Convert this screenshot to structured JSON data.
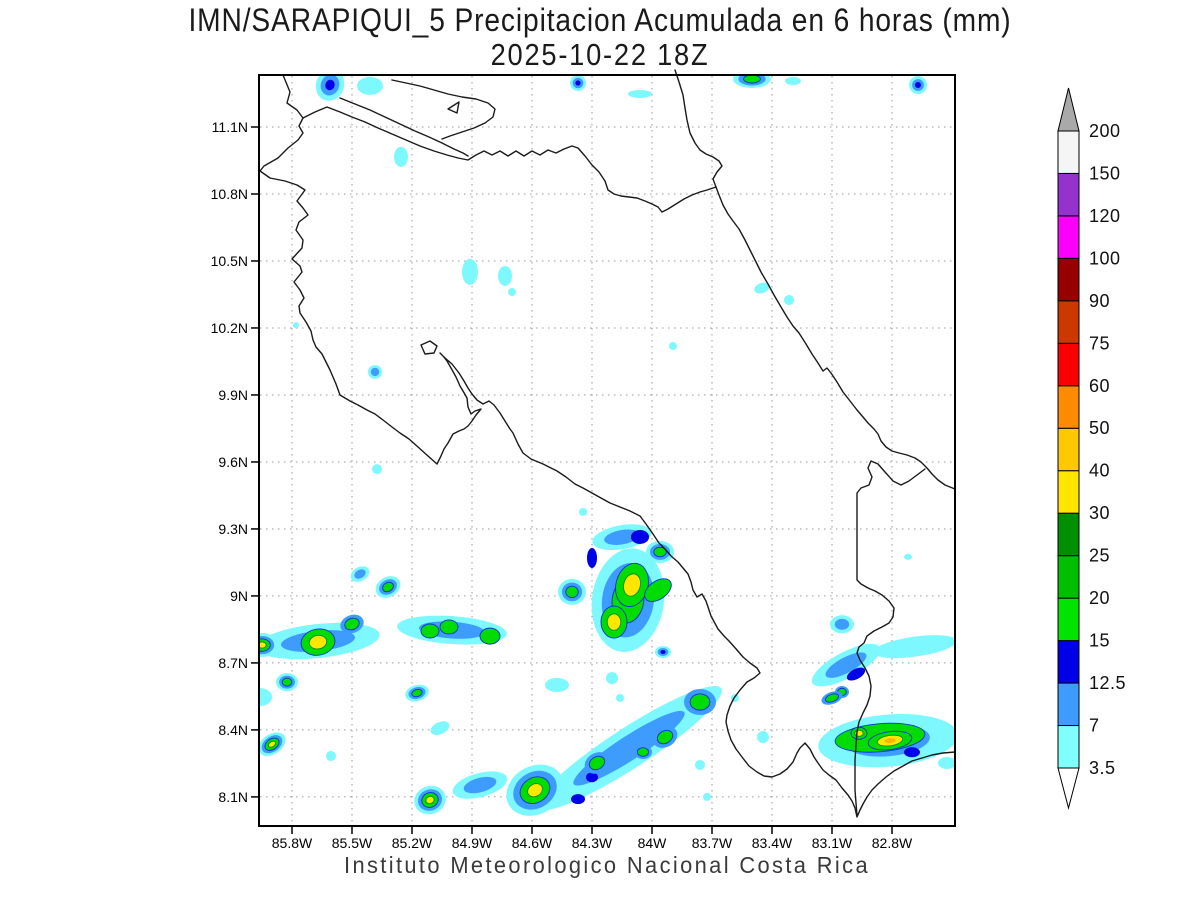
{
  "title": {
    "line1": "IMN/SARAPIQUI_5 Precipitacion Acumulada en 6 horas (mm)",
    "line2": "2025-10-22 18Z"
  },
  "footer": "Instituto Meteorologico Nacional Costa Rica",
  "chart_data": {
    "type": "contour-map",
    "title": "IMN/SARAPIQUI_5 Precipitacion Acumulada en 6 horas (mm)",
    "subtitle": "2025-10-22 18Z",
    "caption": "Instituto Meteorologico Nacional Costa Rica",
    "units": "mm",
    "grid": "dotted",
    "extent": {
      "lon_west_W": 85.97,
      "lon_east_W": 82.49,
      "lat_south_N": 7.97,
      "lat_north_N": 11.33
    },
    "x_ticks": [
      [
        "85.8W",
        85.8
      ],
      [
        "85.5W",
        85.5
      ],
      [
        "85.2W",
        85.2
      ],
      [
        "84.9W",
        84.9
      ],
      [
        "84.6W",
        84.6
      ],
      [
        "84.3W",
        84.3
      ],
      [
        "84W",
        84.0
      ],
      [
        "83.7W",
        83.7
      ],
      [
        "83.4W",
        83.4
      ],
      [
        "83.1W",
        83.1
      ],
      [
        "82.8W",
        82.8
      ]
    ],
    "y_ticks": [
      [
        "11.1N",
        11.1
      ],
      [
        "10.8N",
        10.8
      ],
      [
        "10.5N",
        10.5
      ],
      [
        "10.2N",
        10.2
      ],
      [
        "9.9N",
        9.9
      ],
      [
        "9.6N",
        9.6
      ],
      [
        "9.3N",
        9.3
      ],
      [
        "9N",
        9.0
      ],
      [
        "8.7N",
        8.7
      ],
      [
        "8.4N",
        8.4
      ],
      [
        "8.1N",
        8.1
      ]
    ],
    "colorbar": {
      "labels": [
        "3.5",
        "7",
        "12.5",
        "15",
        "20",
        "25",
        "30",
        "40",
        "50",
        "60",
        "75",
        "90",
        "100",
        "120",
        "150",
        "200"
      ],
      "segment_colors": [
        "#80FFFF",
        "#3E9CFF",
        "#0000E8",
        "#00E400",
        "#00BE00",
        "#008F00",
        "#FFE600",
        "#FFC800",
        "#FF8C00",
        "#FA0000",
        "#CC3900",
        "#960000",
        "#FA00FA",
        "#9333CC",
        "#F5F5F5"
      ],
      "over_color": "#A9A9A9",
      "under_color": "#FFFFFF"
    },
    "palette": {
      "c": "#7DF8FF",
      "b": "#3E9CFF",
      "db": "#0000E8",
      "g": "#00DC00",
      "y": "#FFE600",
      "gold": "#FFB400"
    },
    "cells_format": [
      "lon_W",
      "lat_N",
      "rot_deg",
      "rx_px",
      "ry_px",
      "peak_level"
    ],
    "cells": [
      [
        84.115,
        8.318,
        -33,
        110,
        20,
        "b"
      ],
      [
        84.86,
        8.153,
        -15,
        28,
        12,
        "b"
      ],
      [
        85.67,
        8.798,
        -6,
        62,
        17,
        "b"
      ],
      [
        85.0,
        8.847,
        4,
        55,
        14,
        "b"
      ],
      [
        83.03,
        8.69,
        -28,
        38,
        13,
        "b"
      ],
      [
        82.685,
        8.773,
        -8,
        42,
        10,
        "c"
      ],
      [
        82.82,
        8.352,
        -5,
        70,
        26,
        "b"
      ],
      [
        84.15,
        9.263,
        -10,
        30,
        12,
        "b"
      ],
      [
        84.12,
        8.981,
        8,
        36,
        52,
        "g"
      ],
      [
        85.61,
        11.288,
        20,
        14,
        16,
        "db"
      ],
      [
        85.41,
        11.284,
        0,
        13,
        9,
        "c"
      ],
      [
        84.37,
        11.297,
        0,
        8,
        8,
        "db"
      ],
      [
        84.06,
        11.248,
        0,
        12,
        4,
        "c"
      ],
      [
        83.5,
        11.315,
        0,
        19,
        9,
        "g"
      ],
      [
        83.295,
        11.306,
        0,
        8,
        4,
        "c"
      ],
      [
        82.67,
        11.288,
        0,
        9,
        9,
        "db"
      ],
      [
        85.255,
        10.966,
        0,
        7,
        10,
        "c"
      ],
      [
        84.91,
        10.451,
        0,
        8,
        13,
        "c"
      ],
      [
        84.735,
        10.433,
        0,
        7,
        10,
        "c"
      ],
      [
        84.7,
        10.361,
        0,
        4,
        4,
        "c"
      ],
      [
        83.45,
        10.379,
        -20,
        8,
        5,
        "c"
      ],
      [
        83.315,
        10.325,
        0,
        5,
        5,
        "c"
      ],
      [
        83.895,
        10.119,
        0,
        4,
        4,
        "c"
      ],
      [
        85.385,
        10.003,
        0,
        7,
        7,
        "b"
      ],
      [
        85.78,
        10.213,
        0,
        3,
        3,
        "c"
      ],
      [
        85.375,
        9.568,
        0,
        5,
        5,
        "c"
      ],
      [
        84.345,
        9.376,
        0,
        4,
        4,
        "c"
      ],
      [
        84.06,
        9.264,
        0,
        9,
        7,
        "dbc"
      ],
      [
        83.96,
        9.197,
        0,
        14,
        11,
        "g"
      ],
      [
        84.3,
        9.17,
        0,
        5,
        10,
        "dbc"
      ],
      [
        84.4,
        9.018,
        0,
        14,
        13,
        "g"
      ],
      [
        84.1,
        9.049,
        15,
        16,
        22,
        "yc"
      ],
      [
        84.19,
        8.883,
        0,
        13,
        16,
        "yc"
      ],
      [
        83.97,
        9.026,
        -35,
        15,
        9,
        "gc"
      ],
      [
        83.945,
        8.749,
        0,
        8,
        6,
        "db"
      ],
      [
        84.2,
        8.632,
        0,
        6,
        6,
        "c"
      ],
      [
        84.475,
        8.601,
        0,
        12,
        7,
        "c"
      ],
      [
        85.32,
        9.04,
        -30,
        13,
        10,
        "g"
      ],
      [
        85.46,
        9.098,
        -30,
        10,
        7,
        "b"
      ],
      [
        85.95,
        8.78,
        0,
        16,
        12,
        "y"
      ],
      [
        85.67,
        8.793,
        -10,
        17,
        13,
        "yc"
      ],
      [
        85.5,
        8.874,
        -20,
        12,
        9,
        "bgc"
      ],
      [
        85.11,
        8.843,
        0,
        9,
        7,
        "gc"
      ],
      [
        85.015,
        8.861,
        0,
        9,
        7,
        "gc"
      ],
      [
        84.81,
        8.82,
        0,
        10,
        8,
        "gc"
      ],
      [
        85.825,
        8.614,
        0,
        11,
        9,
        "g"
      ],
      [
        85.96,
        8.547,
        0,
        12,
        9,
        "c"
      ],
      [
        85.175,
        8.565,
        -15,
        12,
        8,
        "g"
      ],
      [
        85.06,
        8.408,
        -25,
        10,
        6,
        "c"
      ],
      [
        85.9,
        8.336,
        -35,
        15,
        10,
        "y"
      ],
      [
        85.605,
        8.283,
        0,
        5,
        5,
        "c"
      ],
      [
        84.585,
        8.13,
        -30,
        30,
        24,
        "y"
      ],
      [
        84.37,
        8.09,
        0,
        7,
        5,
        "dbc"
      ],
      [
        84.3,
        8.188,
        0,
        6,
        5,
        "dbc"
      ],
      [
        85.11,
        8.086,
        -20,
        16,
        14,
        "y"
      ],
      [
        83.76,
        8.525,
        0,
        16,
        13,
        "bgc"
      ],
      [
        83.935,
        8.368,
        -30,
        13,
        10,
        "bgc"
      ],
      [
        84.045,
        8.301,
        0,
        9,
        7,
        "bgc"
      ],
      [
        84.275,
        8.252,
        -30,
        13,
        10,
        "bgc"
      ],
      [
        84.16,
        8.543,
        0,
        4,
        4,
        "c"
      ],
      [
        83.585,
        8.543,
        0,
        4,
        4,
        "c"
      ],
      [
        83.76,
        8.243,
        0,
        5,
        5,
        "c"
      ],
      [
        83.445,
        8.368,
        0,
        6,
        6,
        "c"
      ],
      [
        83.725,
        8.1,
        0,
        4,
        4,
        "c"
      ],
      [
        82.98,
        8.65,
        -28,
        10,
        5,
        "dbc"
      ],
      [
        83.05,
        8.57,
        0,
        7,
        6,
        "bgc"
      ],
      [
        83.05,
        8.873,
        0,
        12,
        9,
        "b"
      ],
      [
        82.86,
        8.365,
        -5,
        45,
        14,
        "gc"
      ],
      [
        82.81,
        8.352,
        -8,
        22,
        9,
        "ygold"
      ],
      [
        82.965,
        8.385,
        0,
        8,
        6,
        "yc"
      ],
      [
        82.7,
        8.3,
        0,
        8,
        5,
        "dbc"
      ],
      [
        83.1,
        8.543,
        -20,
        11,
        6,
        "bgc"
      ],
      [
        82.525,
        8.252,
        0,
        9,
        6,
        "c"
      ],
      [
        82.72,
        9.175,
        0,
        4,
        3,
        "c"
      ]
    ]
  }
}
